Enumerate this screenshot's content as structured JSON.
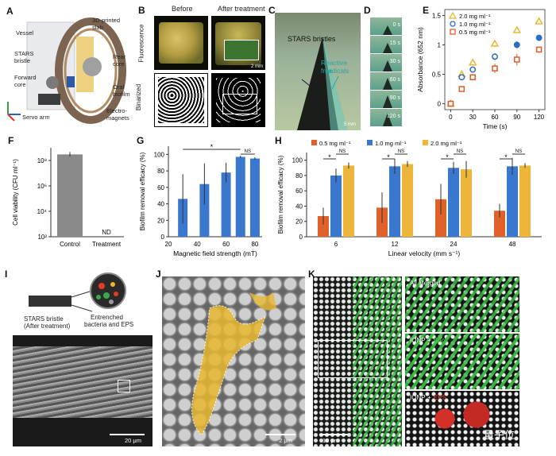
{
  "panels": {
    "A": {
      "label": "A",
      "vessel": "Vessel",
      "stars": "STARS",
      "bristle": "bristle",
      "forward": "Forward",
      "core": "core",
      "servo": "Servo arm",
      "slab1": "3D-printed",
      "slab2": "slab",
      "rear1": "Rear",
      "rear2": "core",
      "oral1": "Oral",
      "oral2": "biofilm",
      "electro1": "Electro-",
      "electro2": "magnets"
    },
    "B": {
      "label": "B",
      "before": "Before",
      "after": "After treatment",
      "row1": "Fluorescence",
      "row2": "Binarized",
      "scale": "2 mm"
    },
    "C": {
      "label": "C",
      "bristles": "STARS bristles",
      "radicals1": "Reactive free",
      "radicals2": "radicals",
      "scale": "5 mm"
    },
    "D": {
      "label": "D",
      "times": [
        "0 s",
        "15 s",
        "30 s",
        "60 s",
        "90 s",
        "120 s"
      ]
    },
    "E": {
      "label": "E",
      "legend": [
        "2.0 mg ml⁻¹",
        "1.0 mg ml⁻¹",
        "0.5 mg ml⁻¹"
      ],
      "ylabel": "Absorbance (652 nm)",
      "xlabel": "Time (s)"
    },
    "F": {
      "label": "F",
      "ylabel": "Cell viability (CFU ml⁻¹)",
      "nd": "ND"
    },
    "G": {
      "label": "G",
      "ylabel": "Biofilm removal efficacy (%)",
      "xlabel": "Magnetic field strength (mT)",
      "star": "*",
      "ns": "NS"
    },
    "H": {
      "label": "H",
      "ylabel": "Biofilm removal efficacy (%)",
      "xlabel": "Linear velocity (mm s⁻¹)",
      "legend": [
        "0.5 mg ml⁻¹",
        "1.0 mg ml⁻¹",
        "2.0 mg ml⁻¹"
      ],
      "star": "*",
      "ns": "NS"
    },
    "I": {
      "label": "I",
      "bristle1": "STARS bristle",
      "bristle2": "(After treatment)",
      "entrench1": "Entrenched",
      "entrench2": "bacteria and EPS",
      "scale": "20 μm"
    },
    "J": {
      "label": "J",
      "scale": "2 μm"
    },
    "K": {
      "label": "K",
      "merged": "All Merged",
      "ionp": "IONP",
      "bac": "Bac",
      "eps": "EPS",
      "plus": "+",
      "scale": "10 μm",
      "watermark": "量子位"
    }
  },
  "chart_data": [
    {
      "type": "scatter",
      "panel": "E",
      "title": "",
      "xlabel": "Time (s)",
      "ylabel": "Absorbance (652 nm)",
      "x": [
        0,
        15,
        30,
        60,
        90,
        120
      ],
      "xlim": [
        -8,
        128
      ],
      "ylim": [
        -0.1,
        1.6
      ],
      "xticks": [
        0,
        30,
        60,
        90,
        120
      ],
      "yticks": [
        0,
        0.5,
        1.0,
        1.5
      ],
      "series": [
        {
          "name": "2.0 mg ml⁻¹",
          "marker": "triangle",
          "color": "#e8b830",
          "values": [
            0.0,
            0.5,
            0.7,
            1.02,
            1.25,
            1.4
          ],
          "err": [
            0.02,
            0.04,
            0.04,
            0.06,
            0.05,
            0.05
          ]
        },
        {
          "name": "1.0 mg ml⁻¹",
          "marker": "circle",
          "color": "#2d6bc8",
          "values": [
            0.0,
            0.45,
            0.58,
            0.8,
            1.0,
            1.12
          ],
          "err": [
            0.02,
            0.04,
            0.05,
            0.06,
            0.06,
            0.05
          ]
        },
        {
          "name": "0.5 mg ml⁻¹",
          "marker": "square",
          "color": "#e05a2a",
          "values": [
            0.0,
            0.25,
            0.45,
            0.6,
            0.75,
            0.92
          ],
          "err": [
            0.02,
            0.04,
            0.05,
            0.08,
            0.1,
            0.05
          ]
        }
      ]
    },
    {
      "type": "bar",
      "panel": "F",
      "xlabel": "",
      "ylabel": "Cell viability (CFU ml⁻¹)",
      "categories": [
        "Control",
        "Treatment"
      ],
      "values": [
        300000000.0,
        0
      ],
      "log": true,
      "ylim": [
        100,
        1000000000.0
      ],
      "ytick_labels": [
        "10⁸",
        "10⁶",
        "10⁴",
        "10²"
      ],
      "ytick_values": [
        100000000.0,
        1000000.0,
        10000.0,
        100.0
      ],
      "color": "#8a8a8a"
    },
    {
      "type": "bar",
      "panel": "G",
      "xlabel": "Magnetic field strength (mT)",
      "ylabel": "Biofilm removal efficacy (%)",
      "categories": [
        "30",
        "45",
        "60",
        "70",
        "80"
      ],
      "x": [
        30,
        45,
        60,
        70,
        80
      ],
      "xticks": [
        20,
        40,
        60,
        80
      ],
      "xlim": [
        20,
        85
      ],
      "values": [
        46,
        64,
        78,
        97,
        95
      ],
      "err": [
        30,
        25,
        12,
        1.5,
        1.5
      ],
      "ylim": [
        0,
        110
      ],
      "yticks": [
        0,
        20,
        40,
        60,
        80,
        100
      ],
      "color": "#3a78cf"
    },
    {
      "type": "bar",
      "panel": "H",
      "xlabel": "Linear velocity (mm s⁻¹)",
      "ylabel": "Biofilm removal efficacy (%)",
      "categories": [
        "6",
        "12",
        "24",
        "48"
      ],
      "ylim": [
        0,
        110
      ],
      "yticks": [
        0,
        20,
        40,
        60,
        80,
        100
      ],
      "series": [
        {
          "name": "0.5 mg ml⁻¹",
          "color": "#e0622a",
          "values": [
            27,
            38,
            49,
            34
          ],
          "err": [
            11,
            20,
            20,
            9
          ]
        },
        {
          "name": "1.0 mg ml⁻¹",
          "color": "#3a78cf",
          "values": [
            80,
            92,
            90,
            92
          ],
          "err": [
            9,
            10,
            8,
            11
          ]
        },
        {
          "name": "2.0 mg ml⁻¹",
          "color": "#edb63a",
          "values": [
            93,
            95,
            88,
            93
          ],
          "err": [
            4,
            4,
            11,
            3
          ]
        }
      ]
    }
  ]
}
